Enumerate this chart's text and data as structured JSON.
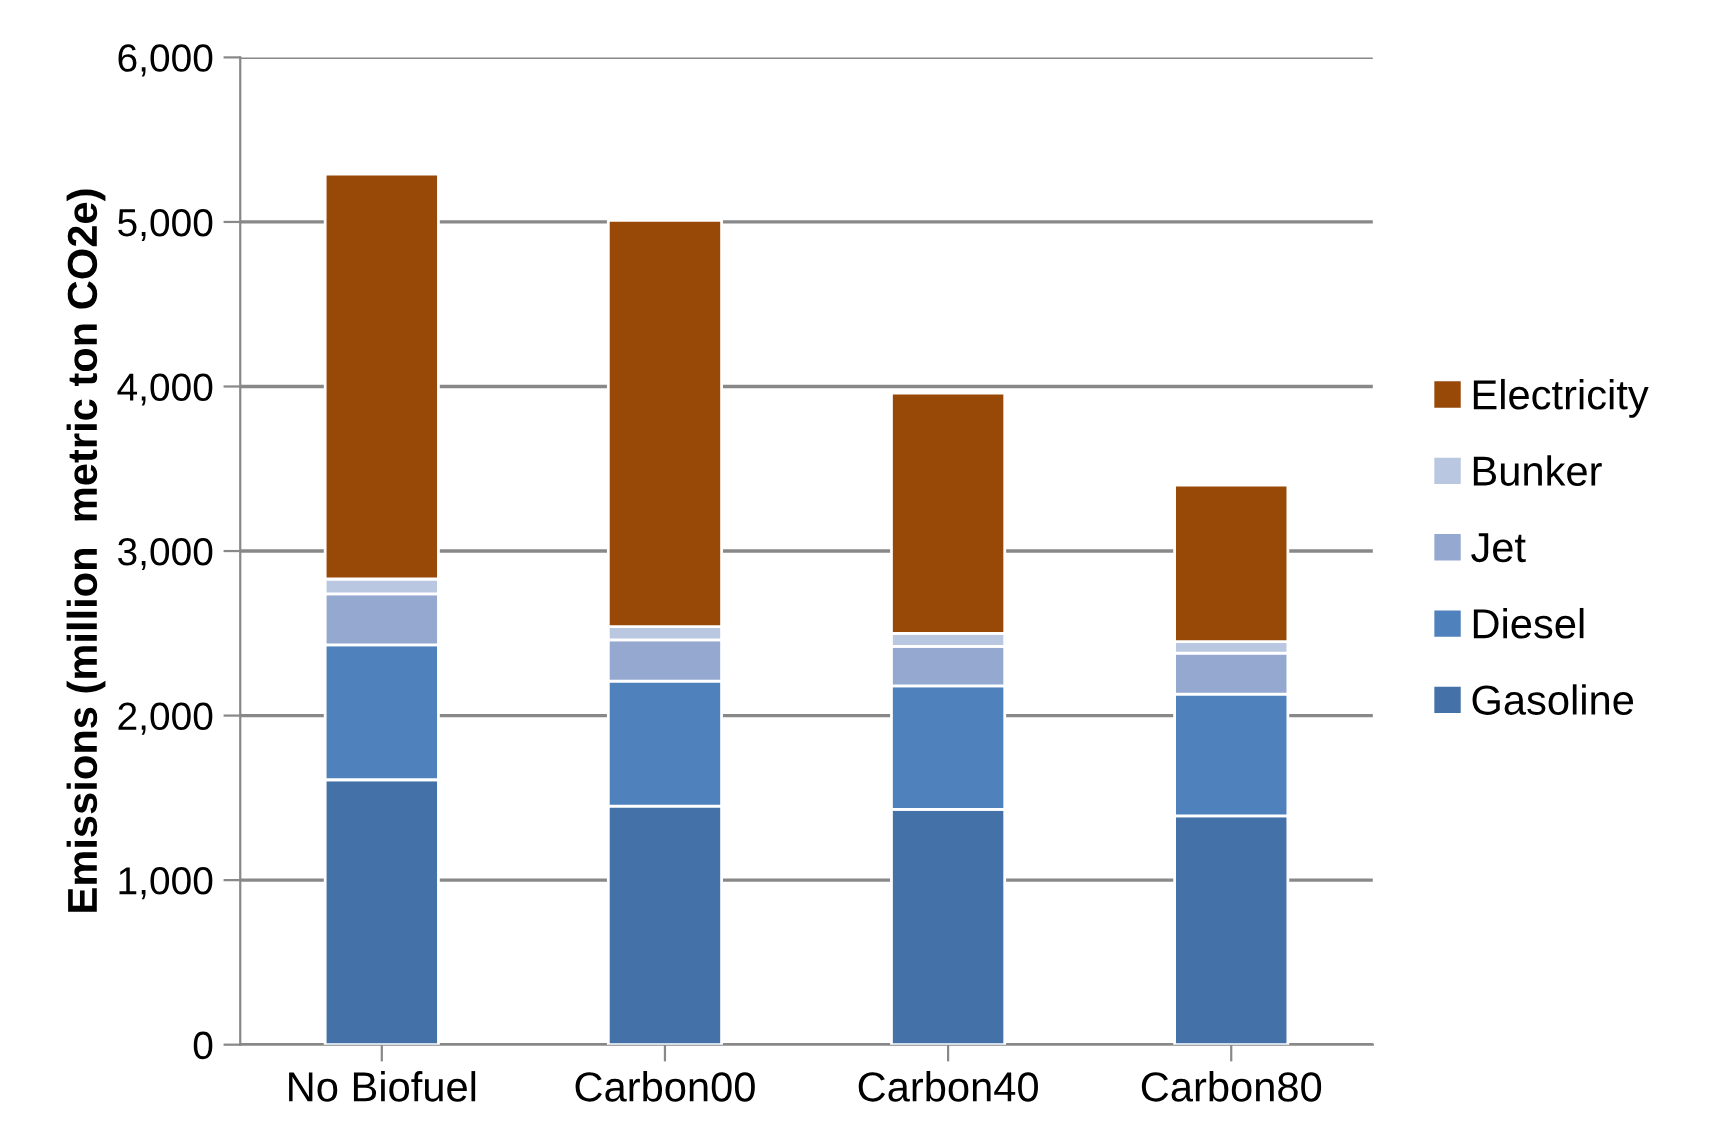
{
  "chart_data": {
    "type": "bar",
    "stacked": true,
    "ylabel": "Emissions (million  metric ton CO2e)",
    "categories": [
      "No Biofuel",
      "Carbon00",
      "Carbon40",
      "Carbon80"
    ],
    "series": [
      {
        "name": "Gasoline",
        "color": "#4472a8",
        "values": [
          1610,
          1450,
          1430,
          1390
        ]
      },
      {
        "name": "Diesel",
        "color": "#4f81bd",
        "values": [
          820,
          760,
          750,
          740
        ]
      },
      {
        "name": "Jet",
        "color": "#95a9d0",
        "values": [
          310,
          250,
          240,
          250
        ]
      },
      {
        "name": "Bunker",
        "color": "#bac7e0",
        "values": [
          90,
          80,
          80,
          70
        ]
      },
      {
        "name": "Electricity",
        "color": "#984807",
        "values": [
          2460,
          2470,
          1460,
          950
        ]
      }
    ],
    "ylim": [
      0,
      6000
    ],
    "yticks": [
      {
        "value": 0,
        "label": "0"
      },
      {
        "value": 1000,
        "label": "1,000"
      },
      {
        "value": 2000,
        "label": "2,000"
      },
      {
        "value": 3000,
        "label": "3,000"
      },
      {
        "value": 4000,
        "label": "4,000"
      },
      {
        "value": 5000,
        "label": "5,000"
      },
      {
        "value": 6000,
        "label": "6,000"
      }
    ],
    "grid": "y",
    "legend": "right"
  }
}
